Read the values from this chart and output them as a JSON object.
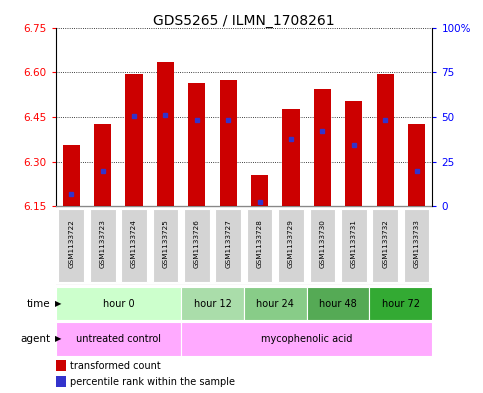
{
  "title": "GDS5265 / ILMN_1708261",
  "samples": [
    "GSM1133722",
    "GSM1133723",
    "GSM1133724",
    "GSM1133725",
    "GSM1133726",
    "GSM1133727",
    "GSM1133728",
    "GSM1133729",
    "GSM1133730",
    "GSM1133731",
    "GSM1133732",
    "GSM1133733"
  ],
  "bar_bottom": 6.15,
  "bar_tops": [
    6.355,
    6.425,
    6.595,
    6.635,
    6.565,
    6.575,
    6.255,
    6.475,
    6.545,
    6.505,
    6.595,
    6.425
  ],
  "percentile_values": [
    6.192,
    6.268,
    6.452,
    6.458,
    6.438,
    6.438,
    6.163,
    6.375,
    6.402,
    6.355,
    6.438,
    6.268
  ],
  "ylim": [
    6.15,
    6.75
  ],
  "y_ticks": [
    6.15,
    6.3,
    6.45,
    6.6,
    6.75
  ],
  "right_yticks": [
    0,
    25,
    50,
    75,
    100
  ],
  "bar_color": "#cc0000",
  "percentile_color": "#3333cc",
  "time_groups": [
    {
      "label": "hour 0",
      "start": 0,
      "end": 4
    },
    {
      "label": "hour 12",
      "start": 4,
      "end": 6
    },
    {
      "label": "hour 24",
      "start": 6,
      "end": 8
    },
    {
      "label": "hour 48",
      "start": 8,
      "end": 10
    },
    {
      "label": "hour 72",
      "start": 10,
      "end": 12
    }
  ],
  "time_colors": [
    "#ccffcc",
    "#aaddaa",
    "#88cc88",
    "#55aa55",
    "#33aa33"
  ],
  "agent_groups": [
    {
      "label": "untreated control",
      "start": 0,
      "end": 4
    },
    {
      "label": "mycophenolic acid",
      "start": 4,
      "end": 12
    }
  ],
  "agent_color": "#ffaaff",
  "bar_width": 0.55
}
